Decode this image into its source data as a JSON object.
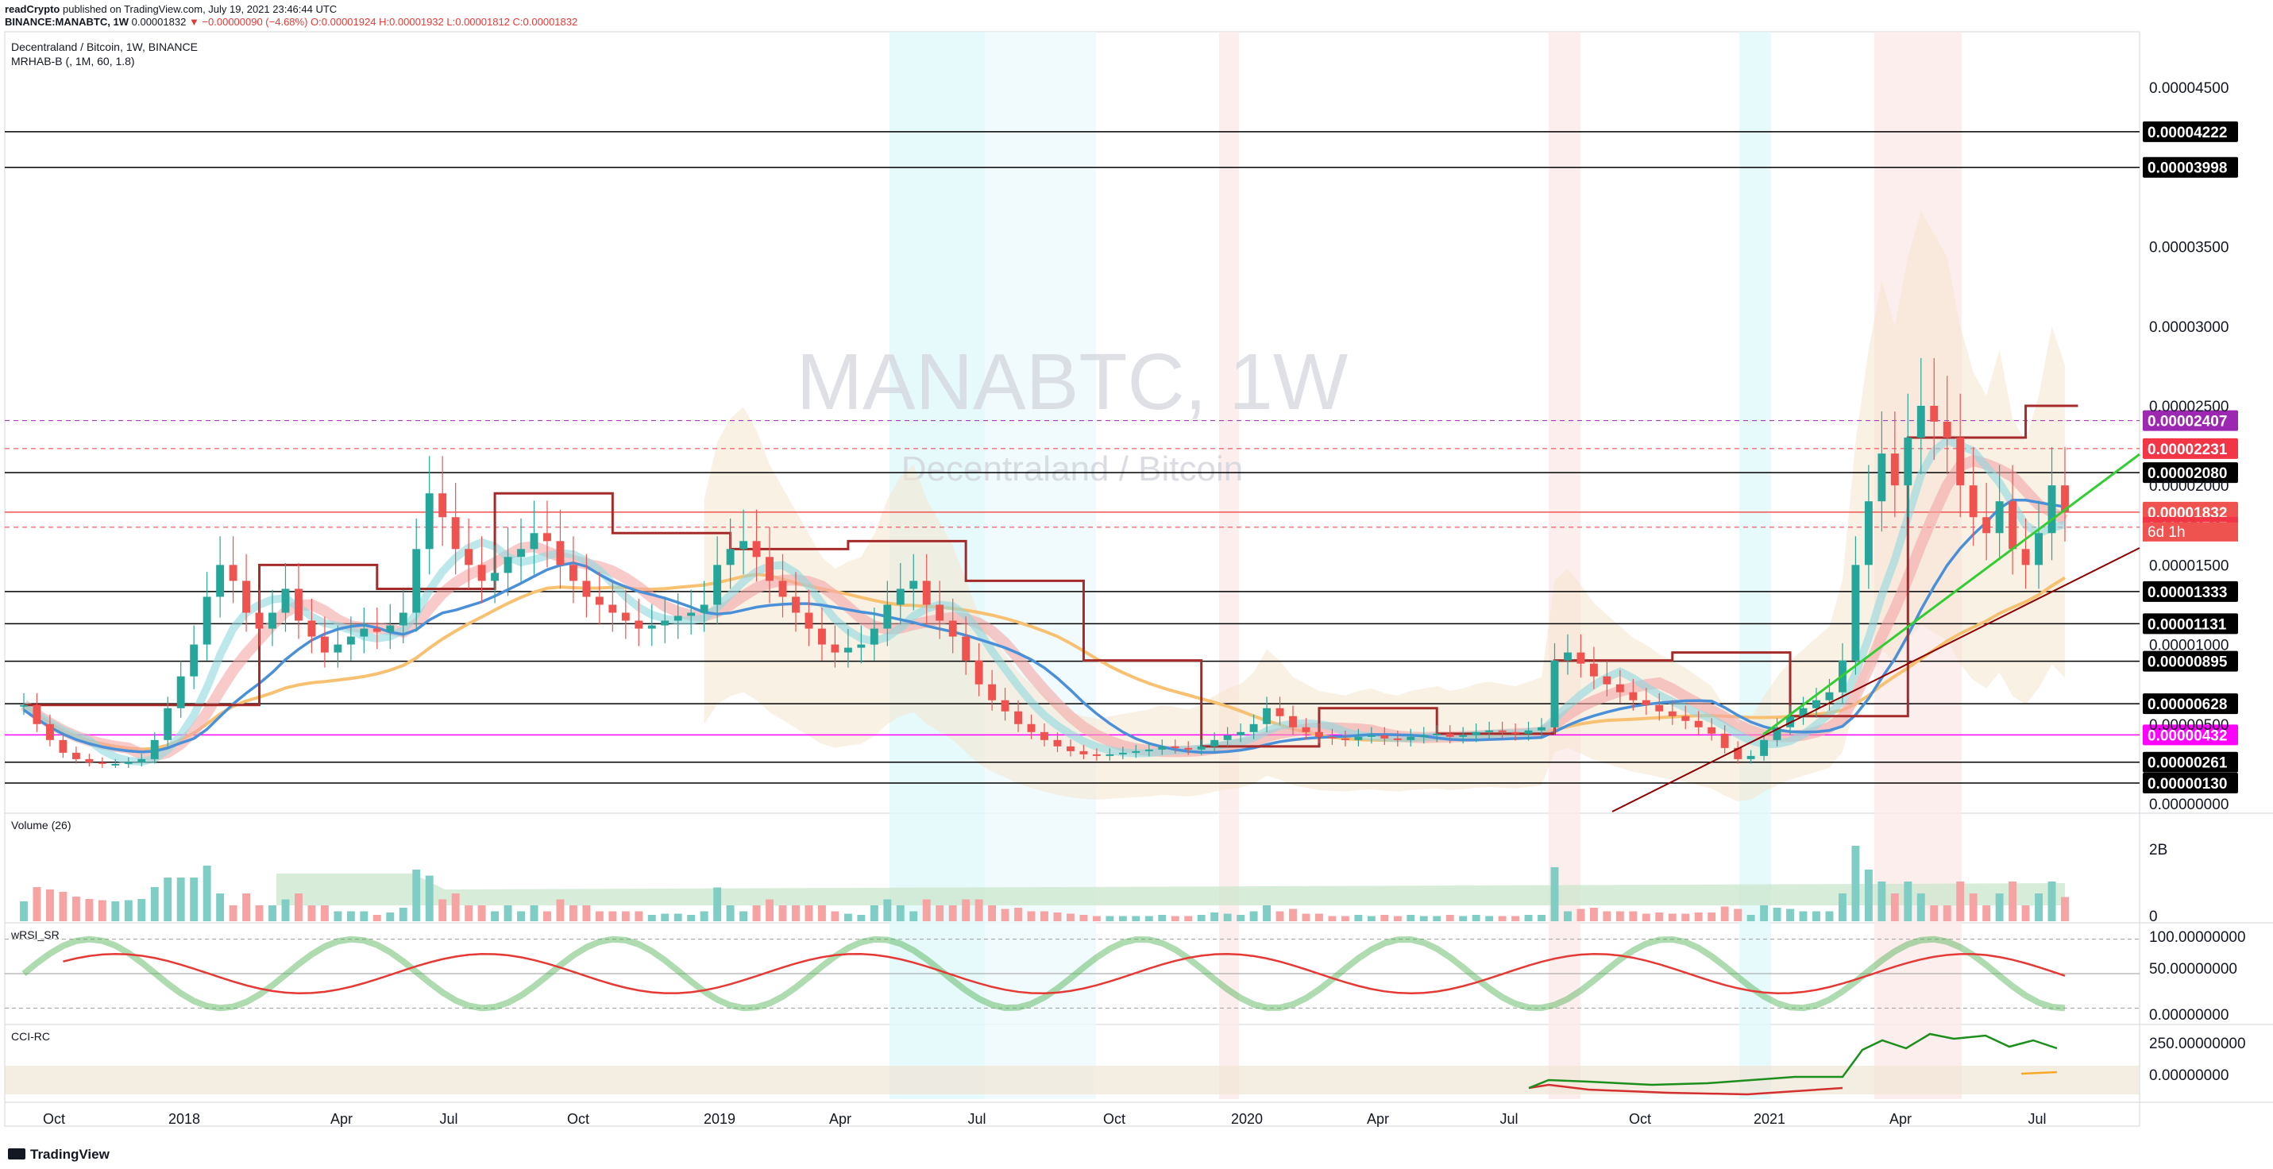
{
  "header": {
    "author": "readCrypto",
    "published": "published on TradingView.com, July 19, 2021 23:46:44 UTC",
    "symbol_line": "BINANCE:MANABTC, 1W",
    "last": "0.00001832",
    "change": "−0.00000090 (−4.68%)",
    "o": "O:0.00001924",
    "h": "H:0.00001932",
    "l": "L:0.00001812",
    "c": "C:0.00001832"
  },
  "legend": {
    "title": "Decentraland / Bitcoin, 1W, BINANCE",
    "indicator": "MRHAB-B (, 1M, 60, 1.8)"
  },
  "watermark": {
    "main": "MANABTC, 1W",
    "sub": "Decentraland / Bitcoin"
  },
  "panes": {
    "volume": "Volume (26)",
    "rsi": "wRSI_SR",
    "cci": "CCI-RC"
  },
  "footer": {
    "brand": "TradingView"
  },
  "chart_data": {
    "type": "candlestick",
    "title": "MANABTC, 1W",
    "x_ticks": [
      "Oct",
      "2018",
      "Apr",
      "Jul",
      "Oct",
      "2019",
      "Apr",
      "Jul",
      "Oct",
      "2020",
      "Apr",
      "Jul",
      "Oct",
      "2021",
      "Apr",
      "Jul"
    ],
    "y_ticks": [
      "0.00004500",
      "0.00003500",
      "0.00003000",
      "0.00002500",
      "0.00002000",
      "0.00001500",
      "0.00001000",
      "0.00000500",
      "0.00000000"
    ],
    "ylim": [
      0,
      4.8e-05
    ],
    "price_labels": [
      {
        "value": "0.00004222",
        "color": "#000000"
      },
      {
        "value": "0.00003998",
        "color": "#000000"
      },
      {
        "value": "0.00002407",
        "color": "#9c27b0"
      },
      {
        "value": "0.00002231",
        "color": "#f23645"
      },
      {
        "value": "0.00002080",
        "color": "#000000"
      },
      {
        "value": "0.00001832",
        "color": "#ef5350"
      },
      {
        "value": "0.00001737",
        "color": "#f23645"
      },
      {
        "value": "0.00001333",
        "color": "#000000"
      },
      {
        "value": "0.00001131",
        "color": "#000000"
      },
      {
        "value": "0.00000895",
        "color": "#000000"
      },
      {
        "value": "0.00000628",
        "color": "#000000"
      },
      {
        "value": "0.00000432",
        "color": "#ff00ff"
      },
      {
        "value": "0.00000261",
        "color": "#000000"
      },
      {
        "value": "0.00000130",
        "color": "#000000"
      }
    ],
    "countdown": "6d 1h",
    "close_series": [
      6.2e-06,
      5e-06,
      4e-06,
      3.2e-06,
      2.8e-06,
      2.6e-06,
      2.5e-06,
      2.5e-06,
      2.6e-06,
      2.8e-06,
      4e-06,
      6e-06,
      8e-06,
      1e-05,
      1.3e-05,
      1.5e-05,
      1.4e-05,
      1.2e-05,
      1.1e-05,
      1.2e-05,
      1.35e-05,
      1.15e-05,
      1.05e-05,
      9.5e-06,
      1e-05,
      1.05e-05,
      1.1e-05,
      1.08e-05,
      1.12e-05,
      1.2e-05,
      1.6e-05,
      1.95e-05,
      1.8e-05,
      1.6e-05,
      1.5e-05,
      1.4e-05,
      1.45e-05,
      1.55e-05,
      1.6e-05,
      1.7e-05,
      1.65e-05,
      1.5e-05,
      1.4e-05,
      1.3e-05,
      1.25e-05,
      1.2e-05,
      1.15e-05,
      1.1e-05,
      1.12e-05,
      1.15e-05,
      1.18e-05,
      1.2e-05,
      1.25e-05,
      1.5e-05,
      1.6e-05,
      1.65e-05,
      1.55e-05,
      1.4e-05,
      1.3e-05,
      1.2e-05,
      1.1e-05,
      1e-05,
      9.5e-06,
      9.8e-06,
      1e-05,
      1.1e-05,
      1.25e-05,
      1.35e-05,
      1.4e-05,
      1.25e-05,
      1.15e-05,
      1.05e-05,
      9e-06,
      7.5e-06,
      6.5e-06,
      5.8e-06,
      5e-06,
      4.5e-06,
      4e-06,
      3.6e-06,
      3.3e-06,
      3.1e-06,
      3e-06,
      3.1e-06,
      3.2e-06,
      3.3e-06,
      3.4e-06,
      3.6e-06,
      3.5e-06,
      3.4e-06,
      3.6e-06,
      4e-06,
      4.3e-06,
      4.5e-06,
      5e-06,
      6e-06,
      5.5e-06,
      4.8e-06,
      4.5e-06,
      4.2e-06,
      4.1e-06,
      4e-06,
      4.2e-06,
      4.3e-06,
      4.1e-06,
      4e-06,
      4.2e-06,
      4.3e-06,
      4.4e-06,
      4.2e-06,
      4.3e-06,
      4.5e-06,
      4.6e-06,
      4.5e-06,
      4.4e-06,
      4.6e-06,
      4.8e-06,
      9e-06,
      9.5e-06,
      8.8e-06,
      8e-06,
      7.5e-06,
      7e-06,
      6.5e-06,
      6.2e-06,
      5.8e-06,
      5.5e-06,
      5.2e-06,
      4.8e-06,
      4.4e-06,
      3.5e-06,
      2.8e-06,
      3e-06,
      4e-06,
      4.8e-06,
      5.5e-06,
      6e-06,
      6.5e-06,
      7e-06,
      9e-06,
      1.5e-05,
      1.9e-05,
      2.2e-05,
      2e-05,
      2.3e-05,
      2.5e-05,
      2.4e-05,
      2.3e-05,
      2e-05,
      1.8e-05,
      1.7e-05,
      1.9e-05,
      1.6e-05,
      1.5e-05,
      1.7e-05,
      2e-05,
      1.83e-05
    ],
    "volume_ylabels": [
      "2B",
      "0"
    ],
    "rsi_ylabels": [
      "100.00000000",
      "50.00000000",
      "0.00000000"
    ],
    "cci_ylabels": [
      "250.00000000",
      "0.00000000"
    ]
  }
}
